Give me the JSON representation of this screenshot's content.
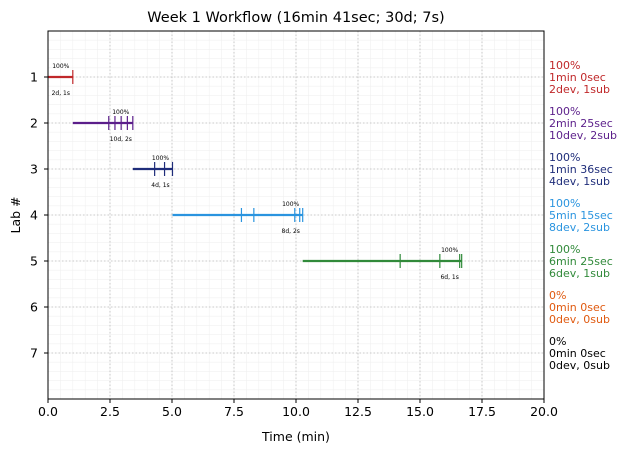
{
  "chart_data": {
    "type": "timeline",
    "title": "Week 1 Workflow (16min 41sec; 30d; 7s)",
    "xlabel": "Time (min)",
    "ylabel": "Lab #",
    "xlim": [
      0,
      20
    ],
    "ylim": [
      8,
      0
    ],
    "xticks": [
      "0.0",
      "2.5",
      "5.0",
      "7.5",
      "10.0",
      "12.5",
      "15.0",
      "17.5",
      "20.0"
    ],
    "grid": true,
    "labs": [
      {
        "label": "1",
        "color": "#c0282a",
        "start": 0.0,
        "end": 1.0,
        "ticks": [
          1.0
        ],
        "pct": "100%",
        "counts": "2d, 1s",
        "summary": [
          "100%",
          "1min 0sec",
          "2dev, 1sub"
        ]
      },
      {
        "label": "2",
        "color": "#5b1e8a",
        "start": 1.0,
        "end": 3.42,
        "ticks": [
          2.45,
          2.7,
          2.95,
          3.2,
          3.42
        ],
        "pct": "100%",
        "counts": "10d, 2s",
        "summary": [
          "100%",
          "2min 25sec",
          "10dev, 2sub"
        ]
      },
      {
        "label": "3",
        "color": "#1f2d7a",
        "start": 3.42,
        "end": 5.02,
        "ticks": [
          4.3,
          4.7,
          5.02
        ],
        "pct": "100%",
        "counts": "4d, 1s",
        "summary": [
          "100%",
          "1min 36sec",
          "4dev, 1sub"
        ]
      },
      {
        "label": "4",
        "color": "#2a94df",
        "start": 5.02,
        "end": 10.27,
        "ticks": [
          7.8,
          8.3,
          9.95,
          10.15,
          10.27
        ],
        "pct": "100%",
        "counts": "8d, 2s",
        "summary": [
          "100%",
          "5min 15sec",
          "8dev, 2sub"
        ]
      },
      {
        "label": "5",
        "color": "#318a3a",
        "start": 10.27,
        "end": 16.68,
        "ticks": [
          14.2,
          15.8,
          16.6,
          16.68
        ],
        "pct": "100%",
        "counts": "6d, 1s",
        "summary": [
          "100%",
          "6min 25sec",
          "6dev, 1sub"
        ]
      },
      {
        "label": "6",
        "color": "#e05a10",
        "start": null,
        "end": null,
        "ticks": [],
        "pct": "",
        "counts": "",
        "summary": [
          "0%",
          "0min 0sec",
          "0dev, 0sub"
        ]
      },
      {
        "label": "7",
        "color": "#000000",
        "start": null,
        "end": null,
        "ticks": [],
        "pct": "",
        "counts": "",
        "summary": [
          "0%",
          "0min 0sec",
          "0dev, 0sub"
        ]
      }
    ]
  }
}
